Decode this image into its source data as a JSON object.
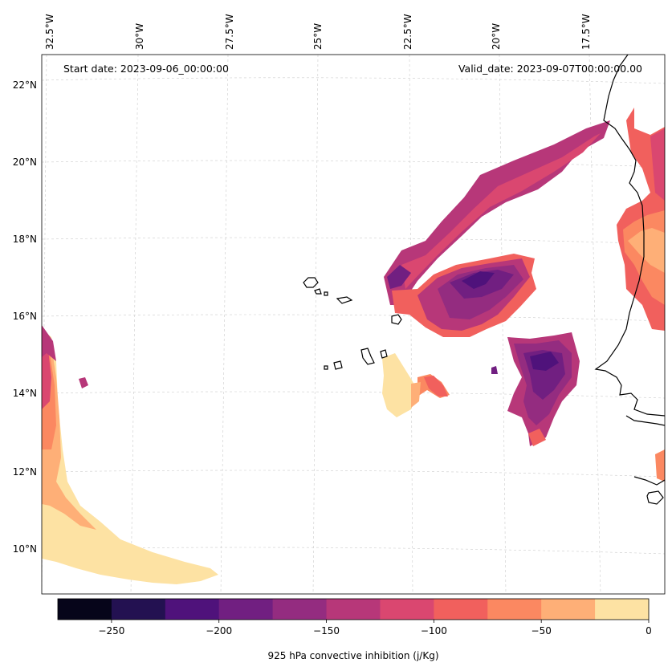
{
  "annotations": {
    "start_date": "Start date: 2023-09-06_00:00:00",
    "valid_date": "Valid_date: 2023-09-07T00:00:00.00"
  },
  "lon_labels": [
    "32.5°W",
    "30°W",
    "27.5°W",
    "25°W",
    "22.5°W",
    "20°W",
    "17.5°W"
  ],
  "lat_labels": [
    "22°N",
    "20°N",
    "18°N",
    "16°N",
    "14°N",
    "12°N",
    "10°N"
  ],
  "colorbar": {
    "label": "925 hPa convective inhibition (j/Kg)",
    "tick_labels": [
      "−250",
      "−200",
      "−150",
      "−100",
      "−50",
      "0"
    ],
    "levels": [
      -275,
      -250,
      -225,
      -200,
      -175,
      -150,
      -125,
      -100,
      -75,
      -50,
      -25,
      0
    ],
    "colors": [
      "#06051a",
      "#231151",
      "#4f127b",
      "#711f81",
      "#942c80",
      "#b73779",
      "#da4770",
      "#f1605d",
      "#fb8861",
      "#feaf77",
      "#fde2a3"
    ]
  },
  "field": {
    "name": "925 hPa convective inhibition",
    "units": "j/Kg"
  }
}
